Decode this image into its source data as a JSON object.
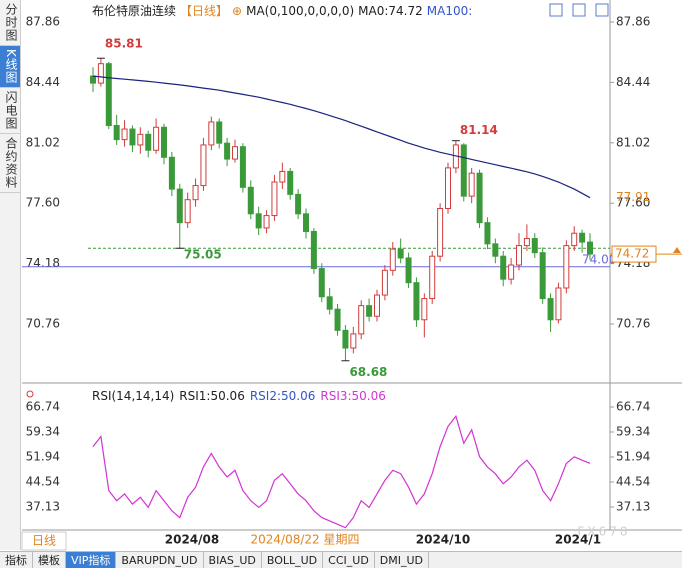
{
  "sidebar": [
    "分时图",
    "K线图",
    "闪电图",
    "合约资料"
  ],
  "tabs": [
    "指标",
    "模板",
    "VIP指标",
    "BARUPDN_UD",
    "BIAS_UD",
    "BOLL_UD",
    "CCI_UD",
    "DMI_UD"
  ],
  "header": {
    "name": "布伦特原油连续",
    "period": "【日线】",
    "plus": "⊕",
    "ma": "MA(0,100,0,0,0,0)",
    "ma0": "MA0:74.72",
    "ma100": "MA100:"
  },
  "rsi_header": {
    "params": "RSI(14,14,14)",
    "rsi1": "RSI1:50.06",
    "rsi2": "RSI2:50.06",
    "rsi3": "RSI3:50.06"
  },
  "period_tab": "日线",
  "watermark": "FX678",
  "chart_data": {
    "type": "candlestick",
    "ylim": [
      67.59,
      88.54
    ],
    "yticks": [
      87.86,
      84.44,
      81.02,
      {
        "value": 77.6,
        "label": "77.60"
      },
      74.18,
      70.76
    ],
    "up_color": "#d23c3c",
    "down_color": "#3a9a3a",
    "candles": [
      [
        84.8,
        85.3,
        83.9,
        84.4
      ],
      [
        84.4,
        85.81,
        84.2,
        85.5
      ],
      [
        85.5,
        85.6,
        81.8,
        82.0
      ],
      [
        82.0,
        82.6,
        80.9,
        81.2
      ],
      [
        81.2,
        82.3,
        80.8,
        81.8
      ],
      [
        81.8,
        82.0,
        80.5,
        80.9
      ],
      [
        80.9,
        81.9,
        80.4,
        81.5
      ],
      [
        81.5,
        81.7,
        80.2,
        80.6
      ],
      [
        80.6,
        82.4,
        80.4,
        81.9
      ],
      [
        81.9,
        82.1,
        79.8,
        80.2
      ],
      [
        80.2,
        80.5,
        78.0,
        78.4
      ],
      [
        78.4,
        78.7,
        75.05,
        76.5
      ],
      [
        76.5,
        78.2,
        76.2,
        77.8
      ],
      [
        77.8,
        79.0,
        77.4,
        78.6
      ],
      [
        78.6,
        81.3,
        78.3,
        80.9
      ],
      [
        80.9,
        82.5,
        80.6,
        82.2
      ],
      [
        82.2,
        82.4,
        80.7,
        81.0
      ],
      [
        81.0,
        81.3,
        79.7,
        80.1
      ],
      [
        80.1,
        81.2,
        79.9,
        80.8
      ],
      [
        80.8,
        81.0,
        78.2,
        78.5
      ],
      [
        78.5,
        78.9,
        76.7,
        77.0
      ],
      [
        77.0,
        77.4,
        75.8,
        76.2
      ],
      [
        76.2,
        77.2,
        75.9,
        76.9
      ],
      [
        76.9,
        79.2,
        76.6,
        78.8
      ],
      [
        78.8,
        79.9,
        78.4,
        79.4
      ],
      [
        79.4,
        79.6,
        77.8,
        78.1
      ],
      [
        78.1,
        78.4,
        76.7,
        77.0
      ],
      [
        77.0,
        77.3,
        75.6,
        76.0
      ],
      [
        76.0,
        76.2,
        73.6,
        73.9
      ],
      [
        73.9,
        74.2,
        72.0,
        72.3
      ],
      [
        72.3,
        72.8,
        71.3,
        71.6
      ],
      [
        71.6,
        71.9,
        70.1,
        70.4
      ],
      [
        70.4,
        70.7,
        68.68,
        69.4
      ],
      [
        69.4,
        70.6,
        69.1,
        70.2
      ],
      [
        70.2,
        72.1,
        69.9,
        71.8
      ],
      [
        71.8,
        72.2,
        70.9,
        71.2
      ],
      [
        71.2,
        72.7,
        70.9,
        72.4
      ],
      [
        72.4,
        74.1,
        72.1,
        73.8
      ],
      [
        73.8,
        75.4,
        73.5,
        75.0
      ],
      [
        75.0,
        75.6,
        74.2,
        74.5
      ],
      [
        74.5,
        74.8,
        72.8,
        73.1
      ],
      [
        73.1,
        73.4,
        70.6,
        71.0
      ],
      [
        71.0,
        72.5,
        70.0,
        72.2
      ],
      [
        72.2,
        74.9,
        71.9,
        74.6
      ],
      [
        74.6,
        77.6,
        74.3,
        77.3
      ],
      [
        77.3,
        79.9,
        77.0,
        79.6
      ],
      [
        79.6,
        81.14,
        79.3,
        80.9
      ],
      [
        80.9,
        81.0,
        77.7,
        78.0
      ],
      [
        78.0,
        79.6,
        77.6,
        79.3
      ],
      [
        79.3,
        79.5,
        76.2,
        76.5
      ],
      [
        76.5,
        76.8,
        75.0,
        75.3
      ],
      [
        75.3,
        75.6,
        74.2,
        74.6
      ],
      [
        74.6,
        74.9,
        72.9,
        73.3
      ],
      [
        73.3,
        74.5,
        73.0,
        74.1
      ],
      [
        74.1,
        75.9,
        73.8,
        75.2
      ],
      [
        75.2,
        76.4,
        74.9,
        75.6
      ],
      [
        75.6,
        75.9,
        74.5,
        74.8
      ],
      [
        74.8,
        75.1,
        71.9,
        72.2
      ],
      [
        72.2,
        72.5,
        70.3,
        71.0
      ],
      [
        71.0,
        73.1,
        70.8,
        72.8
      ],
      [
        72.8,
        75.5,
        72.5,
        75.2
      ],
      [
        75.2,
        76.3,
        74.9,
        75.9
      ],
      [
        75.9,
        76.1,
        74.8,
        75.4
      ],
      [
        75.4,
        75.9,
        74.4,
        74.72
      ]
    ],
    "ma100": {
      "color": "#1a237e",
      "values": [
        84.8,
        84.75,
        84.7,
        84.66,
        84.62,
        84.58,
        84.54,
        84.5,
        84.45,
        84.4,
        84.35,
        84.3,
        84.24,
        84.18,
        84.12,
        84.06,
        84.0,
        83.92,
        83.84,
        83.76,
        83.68,
        83.6,
        83.5,
        83.4,
        83.3,
        83.2,
        83.08,
        82.96,
        82.84,
        82.7,
        82.56,
        82.42,
        82.28,
        82.12,
        81.96,
        81.8,
        81.64,
        81.48,
        81.32,
        81.16,
        81.0,
        80.86,
        80.72,
        80.6,
        80.48,
        80.38,
        80.28,
        80.18,
        80.08,
        79.98,
        79.88,
        79.78,
        79.68,
        79.58,
        79.48,
        79.38,
        79.26,
        79.12,
        78.96,
        78.8,
        78.6,
        78.4,
        78.16,
        77.91
      ]
    },
    "hline": {
      "value": 74,
      "label": "74.00",
      "color": "#6a6ae0"
    },
    "rsi": {
      "color": "#d433d4",
      "ylim": [
        30.32,
        68.81
      ],
      "yticks": [
        66.74,
        59.34,
        51.94,
        44.54,
        37.13
      ],
      "values": [
        55,
        58,
        42,
        39,
        41,
        38,
        40,
        37,
        42,
        39,
        36,
        34,
        40,
        43,
        49,
        53,
        49,
        46,
        48,
        42,
        39,
        37,
        39,
        45,
        47,
        44,
        41,
        39,
        36,
        34,
        33,
        32,
        31,
        34,
        39,
        37,
        41,
        45,
        48,
        47,
        43,
        38,
        41,
        47,
        55,
        61,
        64,
        56,
        60,
        52,
        49,
        47,
        44,
        46,
        49,
        51,
        48,
        42,
        39,
        44,
        50,
        52,
        51,
        50.06
      ]
    },
    "x_labels": [
      "2024/08",
      "2024/10",
      "2024/1"
    ],
    "cursor_date": "2024/08/22 星期四"
  }
}
